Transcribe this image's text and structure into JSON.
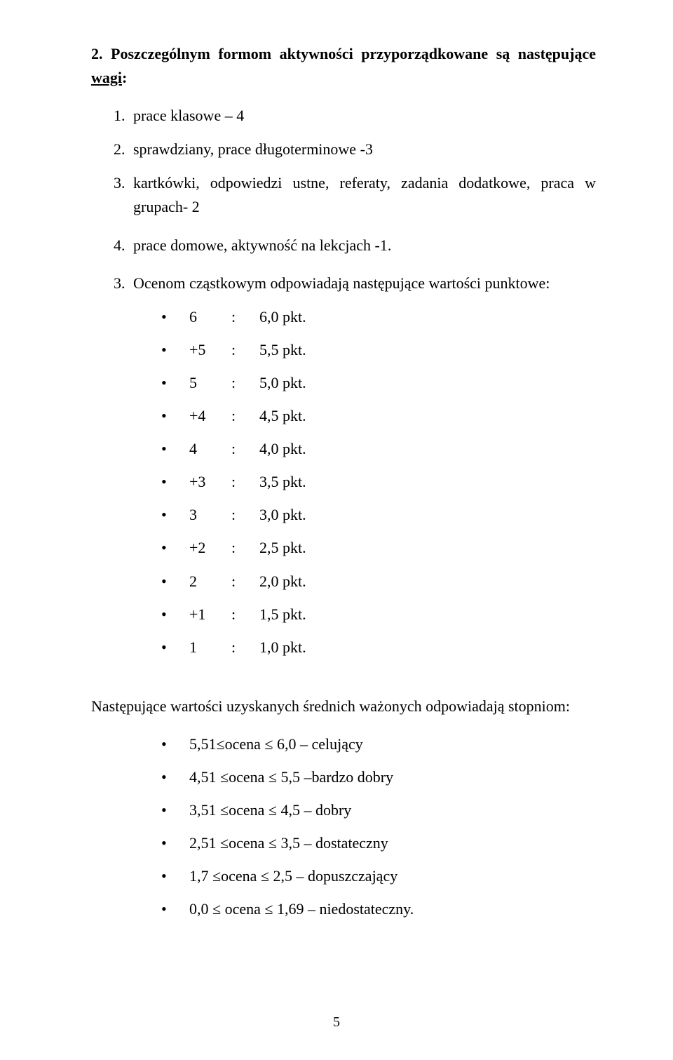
{
  "heading": {
    "num": "2.",
    "text_before_underline": "Poszczególnym formom aktywności przyporządkowane są następujące ",
    "underlined": "wagi",
    "colon": ":"
  },
  "activities": [
    {
      "idx": "1.",
      "text": "prace klasowe – 4"
    },
    {
      "idx": "2.",
      "text": "sprawdziany, prace długoterminowe -3"
    },
    {
      "idx": "3.",
      "text": "kartkówki, odpowiedzi ustne, referaty, zadania dodatkowe, praca w grupach- 2"
    },
    {
      "idx": "4.",
      "text": "prace domowe, aktywność na lekcjach -1."
    }
  ],
  "points_intro": {
    "idx": "3.",
    "text": "Ocenom cząstkowym odpowiadają następujące wartości punktowe:"
  },
  "points": [
    {
      "a": "6",
      "b": ":",
      "c": "6,0 pkt."
    },
    {
      "a": "+5",
      "b": ":",
      "c": "5,5 pkt."
    },
    {
      "a": "5",
      "b": ":",
      "c": "5,0 pkt."
    },
    {
      "a": "+4",
      "b": ":",
      "c": "4,5 pkt."
    },
    {
      "a": "4",
      "b": ":",
      "c": "4,0 pkt."
    },
    {
      "a": "+3",
      "b": ":",
      "c": "3,5 pkt."
    },
    {
      "a": "3",
      "b": ":",
      "c": "3,0 pkt."
    },
    {
      "a": "+2",
      "b": ":",
      "c": "2,5 pkt."
    },
    {
      "a": "2",
      "b": ":",
      "c": "2,0 pkt."
    },
    {
      "a": "+1",
      "b": ":",
      "c": "1,5 pkt."
    },
    {
      "a": "1",
      "b": ":",
      "c": "1,0 pkt."
    }
  ],
  "ranges_heading": "Następujące wartości uzyskanych średnich ważonych odpowiadają stopniom:",
  "ranges": [
    "5,51≤ocena ≤ 6,0 – celujący",
    "4,51 ≤ocena ≤ 5,5 –bardzo dobry",
    "3,51 ≤ocena ≤ 4,5 – dobry",
    "2,51 ≤ocena ≤ 3,5 – dostateczny",
    "1,7  ≤ocena ≤ 2,5 – dopuszczający",
    "0,0  ≤ ocena ≤ 1,69 – niedostateczny."
  ],
  "page_number": "5"
}
